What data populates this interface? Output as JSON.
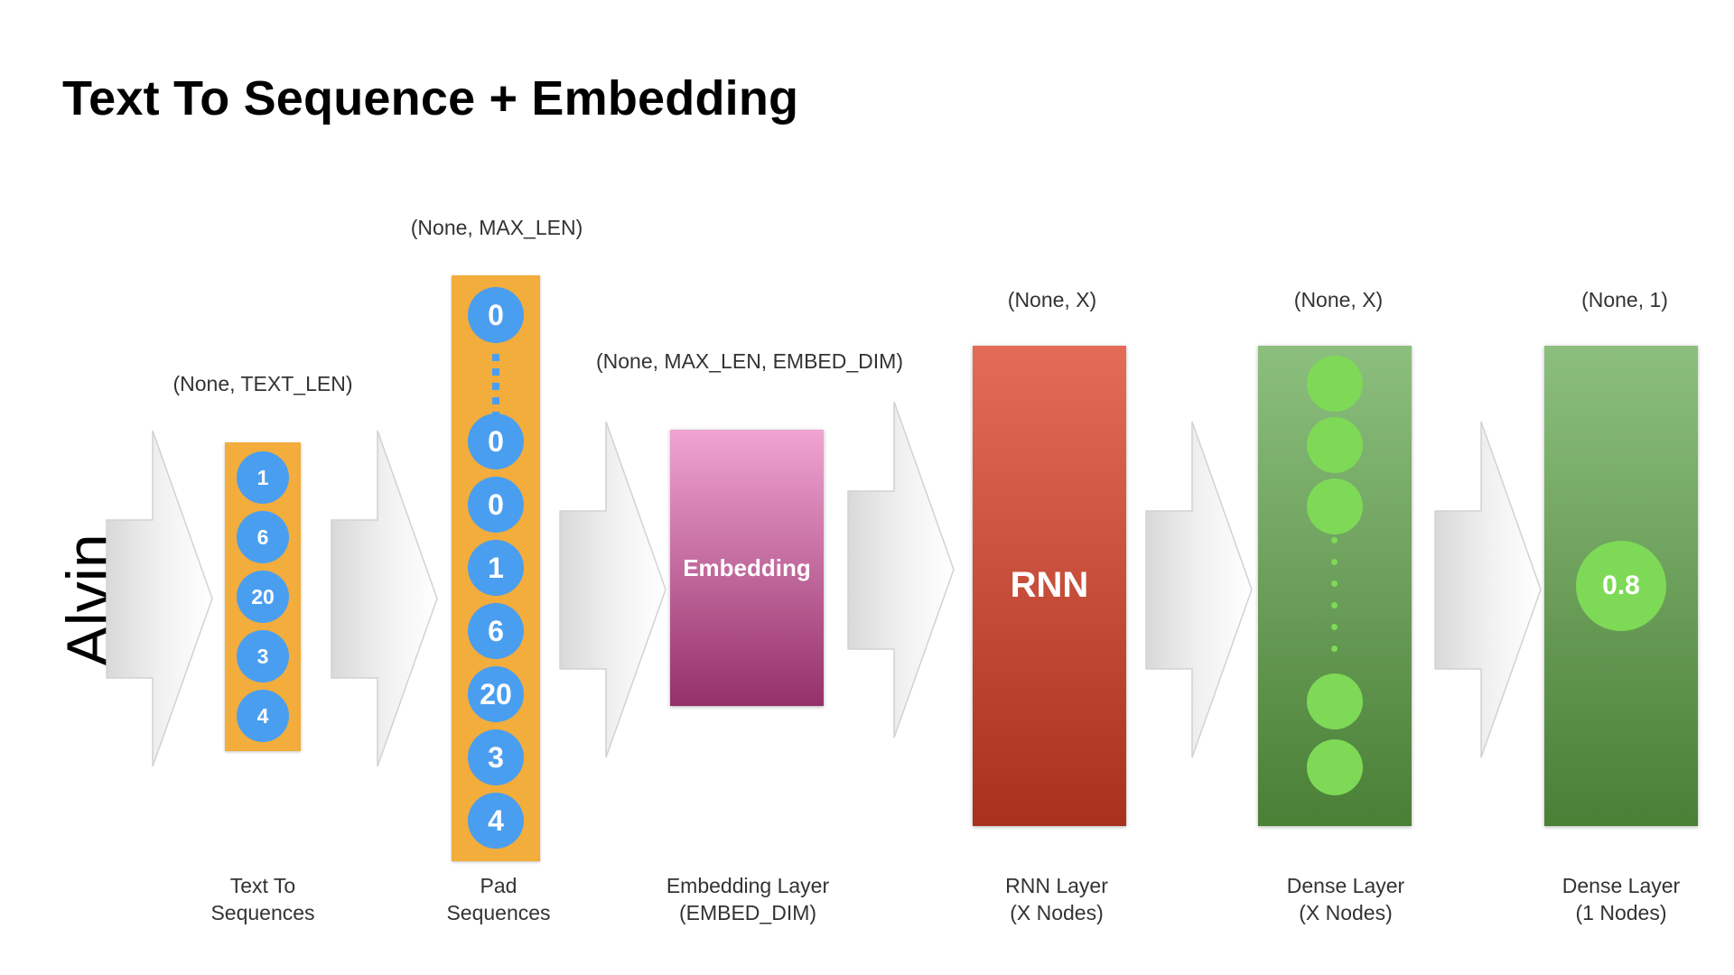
{
  "title": "Text To Sequence + Embedding",
  "input_word": "Alvin",
  "shape_labels": {
    "text_to_sequences": "(None, TEXT_LEN)",
    "pad_sequences": "(None, MAX_LEN)",
    "embedding": "(None, MAX_LEN, EMBED_DIM)",
    "rnn": "(None, X)",
    "dense_x": "(None, X)",
    "dense_1": "(None, 1)"
  },
  "sequence_values": [
    "1",
    "6",
    "20",
    "3",
    "4"
  ],
  "padded_top_value": "0",
  "padded_values": [
    "0",
    "0",
    "1",
    "6",
    "20",
    "3",
    "4"
  ],
  "layers": {
    "embedding_label": "Embedding",
    "rnn_label": "RNN",
    "output_value": "0.8"
  },
  "captions": {
    "text_to_sequences": [
      "Text To",
      "Sequences"
    ],
    "pad_sequences": [
      "Pad",
      "Sequences"
    ],
    "embedding": [
      "Embedding Layer",
      "(EMBED_DIM)"
    ],
    "rnn": [
      "RNN Layer",
      "(X Nodes)"
    ],
    "dense_x": [
      "Dense Layer",
      "(X Nodes)"
    ],
    "dense_1": [
      "Dense Layer",
      "(1 Nodes)"
    ]
  },
  "colors": {
    "sequence_bar": "#f2ad3c",
    "token_circle": "#4a9ef0",
    "embedding_gradient": [
      "#f0a4d2",
      "#94306a"
    ],
    "rnn_gradient": [
      "#e46b57",
      "#a8311e"
    ],
    "dense_gradient": [
      "#8cbf7e",
      "#4a7f36"
    ],
    "node": "#7ed957"
  }
}
